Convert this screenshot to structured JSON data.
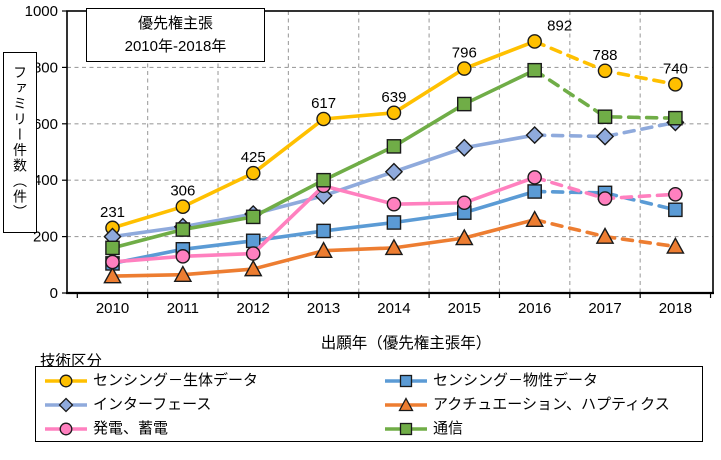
{
  "chart_data": {
    "type": "line",
    "title_box": {
      "line1": "優先権主張",
      "line2": "2010年-2018年"
    },
    "xlabel": "出願年（優先権主張年）",
    "ylabel": "ファミリー件数（件）",
    "legend_caption": "技術区分",
    "x_categories": [
      "2010",
      "2011",
      "2012",
      "2013",
      "2014",
      "2015",
      "2016",
      "2017",
      "2018"
    ],
    "ylim": [
      0,
      1000
    ],
    "ytick_interval": 200,
    "grid": true,
    "legend_position": "bottom",
    "dashed_from_index": 6,
    "series": [
      {
        "name": "センシング－生体データ",
        "marker": "circle",
        "color": "#FFC000",
        "values": [
          231,
          306,
          425,
          617,
          639,
          796,
          892,
          788,
          740
        ],
        "data_labels": true
      },
      {
        "name": "センシング－物性データ",
        "marker": "square",
        "color": "#5B9BD5",
        "values": [
          105,
          155,
          185,
          220,
          250,
          285,
          360,
          355,
          295
        ],
        "data_labels": false
      },
      {
        "name": "インターフェース",
        "marker": "diamond",
        "color": "#8FAADC",
        "values": [
          200,
          235,
          280,
          345,
          430,
          515,
          560,
          555,
          605
        ],
        "data_labels": false
      },
      {
        "name": "アクチュエーション、ハプティクス",
        "marker": "triangle",
        "color": "#ED7D31",
        "values": [
          60,
          65,
          85,
          150,
          160,
          195,
          260,
          200,
          165
        ],
        "data_labels": false
      },
      {
        "name": "発電、蓄電",
        "marker": "circle",
        "color": "#FF80BF",
        "values": [
          110,
          130,
          140,
          380,
          315,
          320,
          410,
          335,
          350
        ],
        "data_labels": false
      },
      {
        "name": "通信",
        "marker": "square",
        "color": "#70AD47",
        "values": [
          160,
          225,
          270,
          400,
          520,
          670,
          790,
          625,
          620
        ],
        "data_labels": false
      }
    ]
  },
  "colors": {
    "grid": "#A0A0A0",
    "axis": "#000000",
    "text": "#000000"
  }
}
